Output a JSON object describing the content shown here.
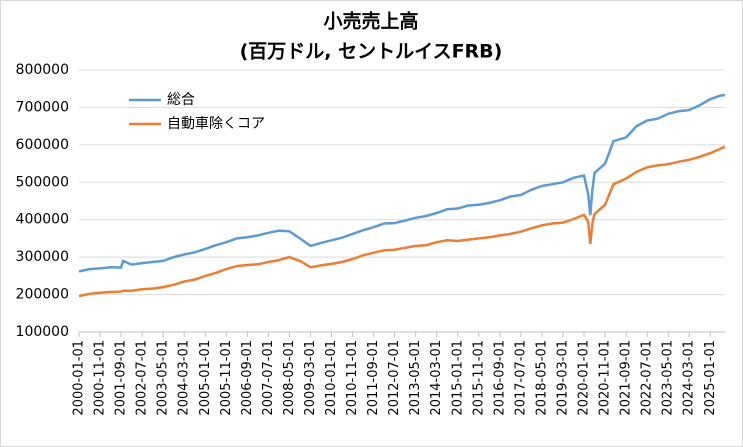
{
  "chart_data": {
    "type": "line",
    "title": "小売売上高",
    "subtitle": "(百万ドル, セントルイスFRB)",
    "x": [
      "2000-01-01",
      "2000-06-01",
      "2000-11-01",
      "2001-04-01",
      "2001-09-01",
      "2001-10-01",
      "2002-02-01",
      "2002-07-01",
      "2002-12-01",
      "2003-05-01",
      "2003-10-01",
      "2004-03-01",
      "2004-08-01",
      "2005-01-01",
      "2005-06-01",
      "2005-11-01",
      "2006-04-01",
      "2006-09-01",
      "2007-02-01",
      "2007-07-01",
      "2007-12-01",
      "2008-05-01",
      "2008-10-01",
      "2009-03-01",
      "2009-08-01",
      "2010-01-01",
      "2010-06-01",
      "2010-11-01",
      "2011-04-01",
      "2011-09-01",
      "2012-02-01",
      "2012-07-01",
      "2012-12-01",
      "2013-05-01",
      "2013-10-01",
      "2014-03-01",
      "2014-08-01",
      "2015-01-01",
      "2015-06-01",
      "2015-11-01",
      "2016-04-01",
      "2016-09-01",
      "2017-02-01",
      "2017-07-01",
      "2017-12-01",
      "2018-05-01",
      "2018-10-01",
      "2019-03-01",
      "2019-08-01",
      "2020-01-01",
      "2020-03-01",
      "2020-04-01",
      "2020-05-01",
      "2020-06-01",
      "2020-11-01",
      "2021-03-01",
      "2021-09-01",
      "2022-02-01",
      "2022-07-01",
      "2022-12-01",
      "2023-05-01",
      "2023-10-01",
      "2024-03-01",
      "2024-08-01",
      "2025-01-01",
      "2025-06-01",
      "2025-08-01"
    ],
    "series": [
      {
        "name": "総合",
        "color": "#5b9bd5",
        "values": [
          262000,
          268000,
          270000,
          273000,
          272000,
          290000,
          280000,
          284000,
          287000,
          290000,
          300000,
          307000,
          313000,
          322000,
          332000,
          340000,
          350000,
          353000,
          358000,
          365000,
          371000,
          369000,
          350000,
          330000,
          338000,
          345000,
          352000,
          362000,
          372000,
          380000,
          390000,
          391000,
          398000,
          405000,
          410000,
          418000,
          428000,
          430000,
          438000,
          440000,
          445000,
          452000,
          462000,
          466000,
          480000,
          490000,
          495000,
          500000,
          512000,
          518000,
          468000,
          412000,
          480000,
          525000,
          550000,
          610000,
          620000,
          650000,
          665000,
          670000,
          683000,
          690000,
          693000,
          706000,
          722000,
          732000,
          733000
        ]
      },
      {
        "name": "自動車除くコア",
        "color": "#ed7d31",
        "values": [
          196000,
          202000,
          205000,
          207000,
          208000,
          210000,
          210000,
          214000,
          216000,
          220000,
          226000,
          235000,
          240000,
          250000,
          258000,
          268000,
          276000,
          279000,
          281000,
          287000,
          292000,
          300000,
          290000,
          273000,
          278000,
          282000,
          287000,
          295000,
          305000,
          312000,
          318000,
          320000,
          325000,
          330000,
          332000,
          340000,
          345000,
          343000,
          347000,
          350000,
          353000,
          358000,
          362000,
          368000,
          377000,
          385000,
          390000,
          392000,
          402000,
          413000,
          395000,
          335000,
          390000,
          415000,
          440000,
          495000,
          510000,
          528000,
          540000,
          545000,
          548000,
          555000,
          560000,
          568000,
          578000,
          590000,
          595000
        ]
      }
    ],
    "xlim": [
      "2000-01-01",
      "2025-08-01"
    ],
    "xticks": [
      "2000-01-01",
      "2000-11-01",
      "2001-09-01",
      "2002-07-01",
      "2003-05-01",
      "2004-03-01",
      "2005-01-01",
      "2005-11-01",
      "2006-09-01",
      "2007-07-01",
      "2008-05-01",
      "2009-03-01",
      "2010-01-01",
      "2010-11-01",
      "2011-09-01",
      "2012-07-01",
      "2013-05-01",
      "2014-03-01",
      "2015-01-01",
      "2015-11-01",
      "2016-09-01",
      "2017-07-01",
      "2018-05-01",
      "2019-03-01",
      "2020-01-01",
      "2020-11-01",
      "2021-09-01",
      "2022-07-01",
      "2023-05-01",
      "2024-03-01",
      "2025-01-01"
    ],
    "ylim": [
      100000,
      800000
    ],
    "yticks": [
      100000,
      200000,
      300000,
      400000,
      500000,
      600000,
      700000,
      800000
    ],
    "grid": true,
    "legend": "upper-left"
  }
}
